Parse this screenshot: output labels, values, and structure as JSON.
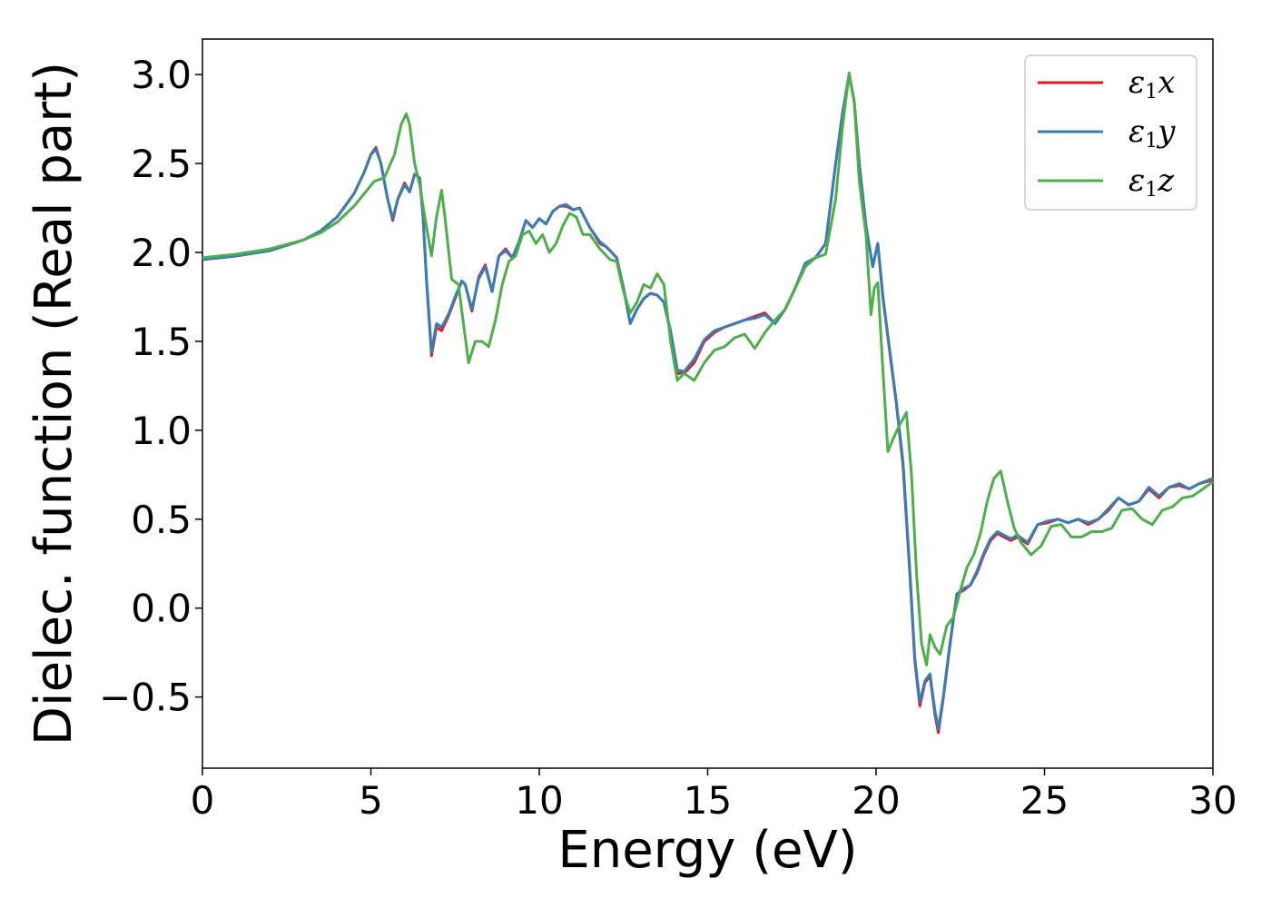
{
  "chart_data": {
    "type": "line",
    "xlabel": "Energy (eV)",
    "ylabel": "Dielec. function (Real part)",
    "xlim": [
      0,
      30
    ],
    "ylim": [
      -0.9,
      3.2
    ],
    "xticks": [
      0,
      5,
      10,
      15,
      20,
      25,
      30
    ],
    "xtick_labels": [
      "0",
      "5",
      "10",
      "15",
      "20",
      "25",
      "30"
    ],
    "yticks": [
      -0.5,
      0.0,
      0.5,
      1.0,
      1.5,
      2.0,
      2.5,
      3.0
    ],
    "ytick_labels": [
      "−0.5",
      "0.0",
      "0.5",
      "1.0",
      "1.5",
      "2.0",
      "2.5",
      "3.0"
    ],
    "grid": false,
    "legend_position": "top-right",
    "series": [
      {
        "name": "ε1x",
        "legend": {
          "symbol": "ε",
          "sub": "1",
          "var": "x"
        },
        "color": "#e41a1c",
        "x": [
          0,
          1,
          2,
          3,
          3.5,
          4,
          4.5,
          4.8,
          5.0,
          5.15,
          5.3,
          5.5,
          5.65,
          5.8,
          6.0,
          6.15,
          6.3,
          6.45,
          6.55,
          6.65,
          6.8,
          6.95,
          7.1,
          7.3,
          7.5,
          7.7,
          7.8,
          8.0,
          8.2,
          8.4,
          8.6,
          8.8,
          9.0,
          9.2,
          9.4,
          9.6,
          9.8,
          10.0,
          10.2,
          10.4,
          10.6,
          10.8,
          11.0,
          11.2,
          11.5,
          11.8,
          12.0,
          12.3,
          12.5,
          12.7,
          12.9,
          13.1,
          13.3,
          13.5,
          13.7,
          13.9,
          14.1,
          14.3,
          14.6,
          14.9,
          15.2,
          15.5,
          15.8,
          16.1,
          16.4,
          16.7,
          17.0,
          17.3,
          17.6,
          17.9,
          18.2,
          18.5,
          18.8,
          19.0,
          19.2,
          19.35,
          19.5,
          19.7,
          19.9,
          20.05,
          20.2,
          20.4,
          20.6,
          20.8,
          21.0,
          21.15,
          21.3,
          21.45,
          21.6,
          21.75,
          21.85,
          22.0,
          22.2,
          22.4,
          22.6,
          22.8,
          23.0,
          23.2,
          23.4,
          23.6,
          23.8,
          24.0,
          24.2,
          24.5,
          24.8,
          25.1,
          25.4,
          25.7,
          26.0,
          26.3,
          26.6,
          26.9,
          27.2,
          27.5,
          27.8,
          28.1,
          28.4,
          28.7,
          29.0,
          29.3,
          29.6,
          30.0
        ],
        "y": [
          1.96,
          1.98,
          2.01,
          2.07,
          2.12,
          2.2,
          2.33,
          2.45,
          2.55,
          2.59,
          2.5,
          2.3,
          2.18,
          2.3,
          2.39,
          2.34,
          2.44,
          2.42,
          2.2,
          1.85,
          1.42,
          1.58,
          1.56,
          1.64,
          1.74,
          1.84,
          1.82,
          1.67,
          1.86,
          1.93,
          1.78,
          1.98,
          2.02,
          1.97,
          2.06,
          2.18,
          2.14,
          2.19,
          2.16,
          2.23,
          2.26,
          2.26,
          2.24,
          2.25,
          2.14,
          2.05,
          2.03,
          1.97,
          1.8,
          1.6,
          1.68,
          1.74,
          1.77,
          1.76,
          1.72,
          1.55,
          1.32,
          1.32,
          1.38,
          1.5,
          1.55,
          1.58,
          1.6,
          1.62,
          1.64,
          1.66,
          1.6,
          1.68,
          1.8,
          1.94,
          1.97,
          2.05,
          2.5,
          2.78,
          3.0,
          2.85,
          2.5,
          2.15,
          1.92,
          2.05,
          1.75,
          1.45,
          1.15,
          0.8,
          0.2,
          -0.3,
          -0.55,
          -0.42,
          -0.38,
          -0.6,
          -0.7,
          -0.5,
          -0.2,
          0.08,
          0.1,
          0.13,
          0.2,
          0.3,
          0.38,
          0.42,
          0.4,
          0.38,
          0.4,
          0.36,
          0.47,
          0.48,
          0.5,
          0.48,
          0.5,
          0.47,
          0.5,
          0.55,
          0.62,
          0.58,
          0.6,
          0.67,
          0.62,
          0.68,
          0.69,
          0.67,
          0.7,
          0.72
        ]
      },
      {
        "name": "ε1y",
        "legend": {
          "symbol": "ε",
          "sub": "1",
          "var": "y"
        },
        "color": "#377eb8",
        "x": [
          0,
          1,
          2,
          3,
          3.5,
          4,
          4.5,
          4.8,
          5.0,
          5.15,
          5.3,
          5.5,
          5.65,
          5.8,
          6.0,
          6.15,
          6.3,
          6.45,
          6.55,
          6.65,
          6.8,
          6.95,
          7.1,
          7.3,
          7.5,
          7.7,
          7.8,
          8.0,
          8.2,
          8.4,
          8.6,
          8.8,
          9.0,
          9.2,
          9.4,
          9.6,
          9.8,
          10.0,
          10.2,
          10.4,
          10.6,
          10.8,
          11.0,
          11.2,
          11.5,
          11.8,
          12.0,
          12.3,
          12.5,
          12.7,
          12.9,
          13.1,
          13.3,
          13.5,
          13.7,
          13.9,
          14.1,
          14.3,
          14.6,
          14.9,
          15.2,
          15.5,
          15.8,
          16.1,
          16.4,
          16.7,
          17.0,
          17.3,
          17.6,
          17.9,
          18.2,
          18.5,
          18.8,
          19.0,
          19.2,
          19.35,
          19.5,
          19.7,
          19.9,
          20.05,
          20.2,
          20.4,
          20.6,
          20.8,
          21.0,
          21.15,
          21.3,
          21.45,
          21.6,
          21.75,
          21.85,
          22.0,
          22.2,
          22.4,
          22.6,
          22.8,
          23.0,
          23.2,
          23.4,
          23.6,
          23.8,
          24.0,
          24.2,
          24.5,
          24.8,
          25.1,
          25.4,
          25.7,
          26.0,
          26.3,
          26.6,
          26.9,
          27.2,
          27.5,
          27.8,
          28.1,
          28.4,
          28.7,
          29.0,
          29.3,
          29.6,
          30.0
        ],
        "y": [
          1.96,
          1.98,
          2.01,
          2.07,
          2.12,
          2.2,
          2.33,
          2.45,
          2.55,
          2.58,
          2.5,
          2.3,
          2.19,
          2.3,
          2.38,
          2.34,
          2.44,
          2.42,
          2.2,
          1.86,
          1.44,
          1.6,
          1.58,
          1.65,
          1.75,
          1.84,
          1.82,
          1.68,
          1.85,
          1.92,
          1.78,
          1.98,
          2.01,
          1.97,
          2.06,
          2.18,
          2.14,
          2.19,
          2.16,
          2.23,
          2.26,
          2.27,
          2.24,
          2.25,
          2.14,
          2.06,
          2.03,
          1.97,
          1.8,
          1.6,
          1.68,
          1.74,
          1.77,
          1.76,
          1.72,
          1.56,
          1.34,
          1.33,
          1.4,
          1.51,
          1.56,
          1.58,
          1.6,
          1.62,
          1.63,
          1.65,
          1.6,
          1.68,
          1.8,
          1.94,
          1.97,
          2.05,
          2.5,
          2.78,
          3.0,
          2.85,
          2.5,
          2.15,
          1.92,
          2.05,
          1.76,
          1.46,
          1.16,
          0.82,
          0.22,
          -0.28,
          -0.53,
          -0.41,
          -0.37,
          -0.58,
          -0.68,
          -0.49,
          -0.19,
          0.08,
          0.11,
          0.13,
          0.21,
          0.31,
          0.39,
          0.43,
          0.41,
          0.39,
          0.41,
          0.37,
          0.47,
          0.49,
          0.5,
          0.48,
          0.5,
          0.48,
          0.5,
          0.56,
          0.62,
          0.58,
          0.6,
          0.68,
          0.63,
          0.68,
          0.7,
          0.67,
          0.7,
          0.73
        ]
      },
      {
        "name": "ε1z",
        "legend": {
          "symbol": "ε",
          "sub": "1",
          "var": "z"
        },
        "color": "#4daf4a",
        "x": [
          0,
          1,
          2,
          3,
          3.5,
          4,
          4.5,
          4.8,
          5.1,
          5.4,
          5.7,
          5.9,
          6.05,
          6.15,
          6.3,
          6.45,
          6.6,
          6.8,
          6.95,
          7.1,
          7.2,
          7.4,
          7.6,
          7.75,
          7.9,
          8.1,
          8.3,
          8.5,
          8.7,
          8.9,
          9.1,
          9.3,
          9.5,
          9.7,
          9.9,
          10.1,
          10.3,
          10.5,
          10.7,
          10.9,
          11.1,
          11.3,
          11.5,
          11.8,
          12.1,
          12.3,
          12.5,
          12.7,
          12.9,
          13.1,
          13.3,
          13.5,
          13.7,
          13.9,
          14.1,
          14.3,
          14.6,
          14.9,
          15.2,
          15.5,
          15.8,
          16.1,
          16.4,
          16.7,
          17.0,
          17.3,
          17.6,
          17.9,
          18.2,
          18.5,
          18.8,
          19.0,
          19.2,
          19.35,
          19.5,
          19.7,
          19.85,
          19.95,
          20.05,
          20.2,
          20.35,
          20.5,
          20.7,
          20.9,
          21.05,
          21.2,
          21.35,
          21.5,
          21.6,
          21.75,
          21.9,
          22.1,
          22.3,
          22.5,
          22.7,
          22.9,
          23.1,
          23.3,
          23.5,
          23.7,
          23.9,
          24.1,
          24.3,
          24.6,
          24.9,
          25.2,
          25.5,
          25.8,
          26.1,
          26.4,
          26.7,
          27.0,
          27.3,
          27.6,
          27.9,
          28.2,
          28.5,
          28.8,
          29.1,
          29.4,
          29.7,
          30.0
        ],
        "y": [
          1.97,
          1.99,
          2.02,
          2.07,
          2.11,
          2.17,
          2.26,
          2.33,
          2.4,
          2.42,
          2.55,
          2.72,
          2.78,
          2.72,
          2.5,
          2.38,
          2.2,
          1.98,
          2.2,
          2.35,
          2.2,
          1.85,
          1.82,
          1.6,
          1.38,
          1.5,
          1.5,
          1.47,
          1.62,
          1.82,
          1.95,
          1.98,
          2.1,
          2.12,
          2.05,
          2.1,
          2.0,
          2.05,
          2.15,
          2.22,
          2.2,
          2.1,
          2.1,
          2.02,
          1.96,
          1.95,
          1.78,
          1.66,
          1.72,
          1.82,
          1.8,
          1.88,
          1.82,
          1.5,
          1.28,
          1.32,
          1.28,
          1.38,
          1.45,
          1.47,
          1.52,
          1.54,
          1.46,
          1.55,
          1.62,
          1.68,
          1.8,
          1.92,
          1.97,
          1.99,
          2.3,
          2.7,
          3.01,
          2.85,
          2.4,
          2.1,
          1.65,
          1.8,
          1.83,
          1.35,
          0.88,
          0.95,
          1.03,
          1.1,
          0.75,
          0.2,
          -0.2,
          -0.32,
          -0.15,
          -0.22,
          -0.26,
          -0.1,
          -0.05,
          0.1,
          0.23,
          0.3,
          0.42,
          0.6,
          0.73,
          0.77,
          0.6,
          0.45,
          0.37,
          0.3,
          0.35,
          0.46,
          0.47,
          0.4,
          0.4,
          0.43,
          0.43,
          0.45,
          0.55,
          0.56,
          0.5,
          0.47,
          0.55,
          0.57,
          0.62,
          0.63,
          0.67,
          0.71
        ]
      }
    ]
  }
}
